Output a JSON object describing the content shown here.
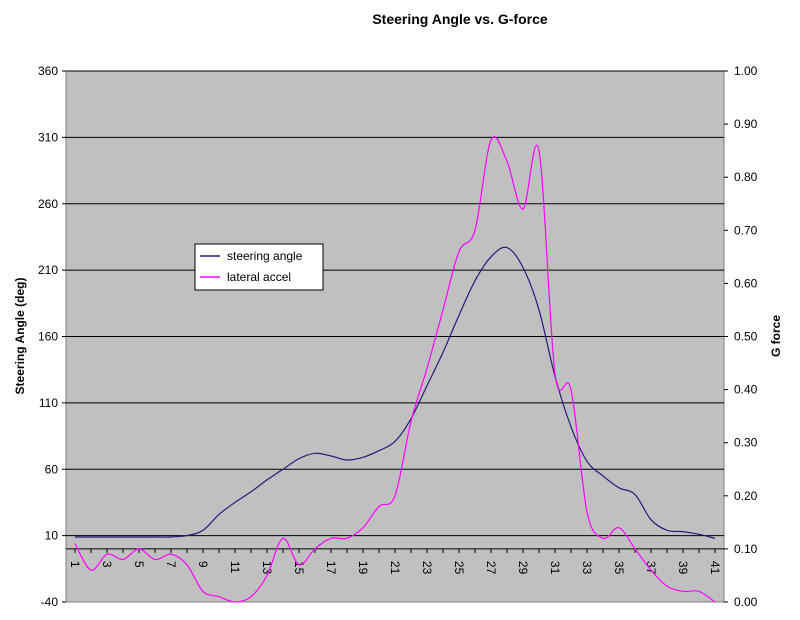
{
  "chart_data": {
    "type": "line",
    "title": "Steering Angle vs. G-force",
    "xlabel": "",
    "ylabel": "Steering Angle (deg)",
    "y2label": "G force",
    "x": [
      1,
      2,
      3,
      4,
      5,
      6,
      7,
      8,
      9,
      10,
      11,
      12,
      13,
      14,
      15,
      16,
      17,
      18,
      19,
      20,
      21,
      22,
      23,
      24,
      25,
      26,
      27,
      28,
      29,
      30,
      31,
      32,
      33,
      34,
      35,
      36,
      37,
      38,
      39,
      40,
      41
    ],
    "x_tick_labels": [
      "1",
      "3",
      "5",
      "7",
      "9",
      "11",
      "13",
      "15",
      "17",
      "19",
      "21",
      "23",
      "25",
      "27",
      "29",
      "31",
      "33",
      "35",
      "37",
      "39",
      "41"
    ],
    "ylim": [
      -40,
      360
    ],
    "y_ticks": [
      -40,
      10,
      60,
      110,
      160,
      210,
      260,
      310,
      360
    ],
    "y2lim": [
      0.0,
      1.0
    ],
    "y2_tick_labels": [
      "0.00",
      "0.10",
      "0.20",
      "0.30",
      "0.40",
      "0.50",
      "0.60",
      "0.70",
      "0.80",
      "0.90",
      "1.00"
    ],
    "series": [
      {
        "name": "steering angle",
        "axis": "left",
        "color": "#1f1f7a",
        "values": [
          9,
          9,
          9,
          9,
          9,
          9,
          9,
          10,
          14,
          26,
          35,
          43,
          52,
          60,
          68,
          72,
          70,
          67,
          69,
          74,
          81,
          98,
          123,
          148,
          176,
          202,
          220,
          227,
          212,
          180,
          130,
          92,
          66,
          55,
          46,
          41,
          22,
          14,
          13,
          11,
          8
        ]
      },
      {
        "name": "lateral accel",
        "axis": "right",
        "color": "#ff00ff",
        "values": [
          0.11,
          0.06,
          0.09,
          0.08,
          0.1,
          0.08,
          0.09,
          0.07,
          0.02,
          0.01,
          0.0,
          0.01,
          0.05,
          0.12,
          0.07,
          0.1,
          0.12,
          0.12,
          0.14,
          0.18,
          0.2,
          0.34,
          0.44,
          0.55,
          0.66,
          0.7,
          0.87,
          0.83,
          0.74,
          0.85,
          0.43,
          0.4,
          0.17,
          0.12,
          0.14,
          0.1,
          0.06,
          0.03,
          0.02,
          0.02,
          0.0
        ]
      }
    ],
    "legend": {
      "placement": "upper-left"
    },
    "grid": true,
    "plot_background": "#c0c0c0"
  }
}
